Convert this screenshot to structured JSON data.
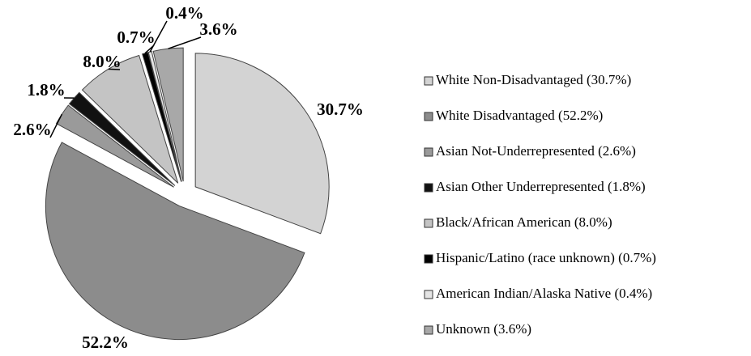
{
  "chart_data": {
    "type": "pie",
    "categories": [
      "White Non-Disadvantaged (30.7%)",
      "White Disadvantaged (52.2%)",
      "Asian Not-Underrepresented (2.6%)",
      "Asian Other Underrepresented (1.8%)",
      "Black/African American (8.0%)",
      "Hispanic/Latino (race unknown) (0.7%)",
      "American Indian/Alaska Native (0.4%)",
      "Unknown (3.6%)"
    ],
    "values": [
      30.7,
      52.2,
      2.6,
      1.8,
      8.0,
      0.7,
      0.4,
      3.6
    ],
    "value_labels": [
      "30.7%",
      "52.2%",
      "2.6%",
      "1.8%",
      "8.0%",
      "0.7%",
      "0.4%",
      "3.6%"
    ],
    "colors": [
      "#d3d3d3",
      "#8c8c8c",
      "#9a9a9a",
      "#111111",
      "#c4c4c4",
      "#000000",
      "#e4e4e4",
      "#a8a8a8"
    ],
    "legend": "right"
  }
}
